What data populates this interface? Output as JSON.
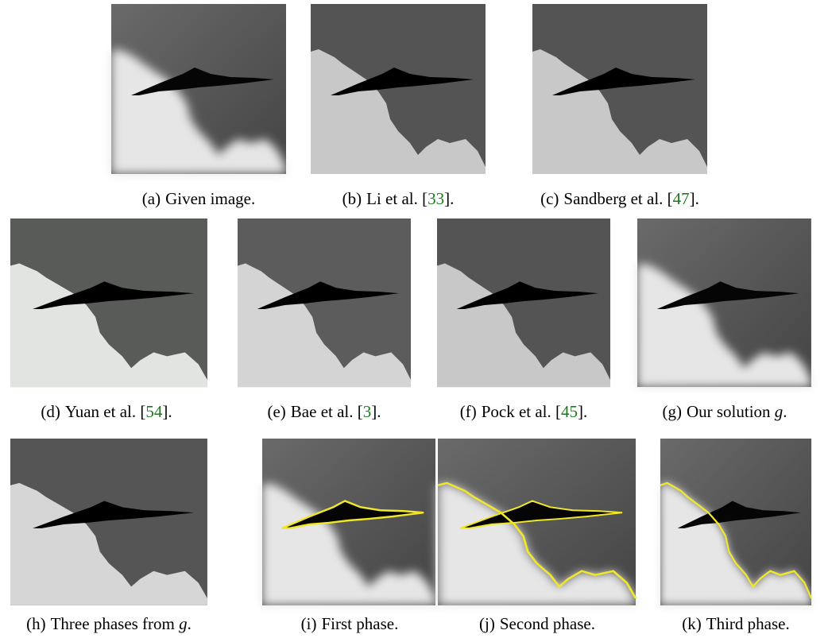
{
  "panels": [
    {
      "label": "(a)",
      "caption": [
        "Given image."
      ]
    },
    {
      "label": "(b)",
      "caption": [
        "Li et al. [",
        "33",
        "]."
      ]
    },
    {
      "label": "(c)",
      "caption": [
        "Sandberg et al. [",
        "47",
        "]."
      ]
    },
    {
      "label": "(d)",
      "caption": [
        "Yuan et al. [",
        "54",
        "]."
      ]
    },
    {
      "label": "(e)",
      "caption": [
        "Bae et al. [",
        "3",
        "]."
      ]
    },
    {
      "label": "(f)",
      "caption": [
        "Pock et al. [",
        "45",
        "]."
      ]
    },
    {
      "label": "(g)",
      "caption": [
        "Our solution ",
        "g",
        "."
      ]
    },
    {
      "label": "(h)",
      "caption": [
        "Three phases from ",
        "g",
        "."
      ]
    },
    {
      "label": "(i)",
      "caption": [
        "First phase."
      ]
    },
    {
      "label": "(j)",
      "caption": [
        "Second phase."
      ]
    },
    {
      "label": "(k)",
      "caption": [
        "Third phase."
      ]
    }
  ]
}
